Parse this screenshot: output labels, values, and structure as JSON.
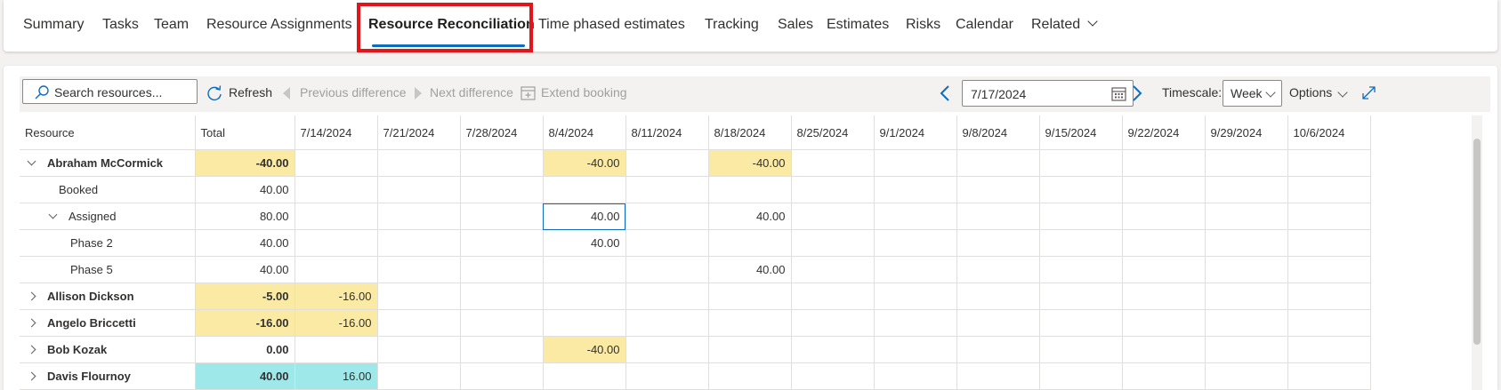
{
  "tabs": [
    {
      "label": "Summary"
    },
    {
      "label": "Tasks"
    },
    {
      "label": "Team"
    },
    {
      "label": "Resource Assignments"
    },
    {
      "label": "Resource Reconciliation"
    },
    {
      "label": "Time phased estimates"
    },
    {
      "label": "Tracking"
    },
    {
      "label": "Sales"
    },
    {
      "label": "Estimates"
    },
    {
      "label": "Risks"
    },
    {
      "label": "Calendar"
    },
    {
      "label": "Related"
    }
  ],
  "toolbar": {
    "search_placeholder": "Search resources...",
    "refresh": "Refresh",
    "previous_difference": "Previous difference",
    "next_difference": "Next difference",
    "extend_booking": "Extend booking",
    "date": "7/17/2024",
    "timescale_label": "Timescale:",
    "timescale_value": "Week",
    "options": "Options"
  },
  "grid": {
    "columns": [
      "Resource",
      "Total",
      "7/14/2024",
      "7/21/2024",
      "7/28/2024",
      "8/4/2024",
      "8/11/2024",
      "8/18/2024",
      "8/25/2024",
      "9/1/2024",
      "9/8/2024",
      "9/15/2024",
      "9/22/2024",
      "9/29/2024",
      "10/6/2024"
    ],
    "rows": [
      {
        "name": "Abraham McCormick",
        "total": "-40.00",
        "cells": [
          "",
          "",
          "",
          "-40.00",
          "",
          "-40.00",
          "",
          "",
          "",
          "",
          "",
          "",
          ""
        ]
      },
      {
        "name": "Booked",
        "total": "40.00",
        "cells": [
          "",
          "",
          "",
          "",
          "",
          "",
          "",
          "",
          "",
          "",
          "",
          "",
          ""
        ]
      },
      {
        "name": "Assigned",
        "total": "80.00",
        "cells": [
          "",
          "",
          "",
          "40.00",
          "",
          "40.00",
          "",
          "",
          "",
          "",
          "",
          "",
          ""
        ]
      },
      {
        "name": "Phase 2",
        "total": "40.00",
        "cells": [
          "",
          "",
          "",
          "40.00",
          "",
          "",
          "",
          "",
          "",
          "",
          "",
          "",
          ""
        ]
      },
      {
        "name": "Phase 5",
        "total": "40.00",
        "cells": [
          "",
          "",
          "",
          "",
          "",
          "40.00",
          "",
          "",
          "",
          "",
          "",
          "",
          ""
        ]
      },
      {
        "name": "Allison Dickson",
        "total": "-5.00",
        "cells": [
          "-16.00",
          "",
          "",
          "",
          "",
          "",
          "",
          "",
          "",
          "",
          "",
          "",
          ""
        ]
      },
      {
        "name": "Angelo Briccetti",
        "total": "-16.00",
        "cells": [
          "-16.00",
          "",
          "",
          "",
          "",
          "",
          "",
          "",
          "",
          "",
          "",
          "",
          ""
        ]
      },
      {
        "name": "Bob Kozak",
        "total": "0.00",
        "cells": [
          "",
          "",
          "",
          "-40.00",
          "",
          "",
          "",
          "",
          "",
          "",
          "",
          "",
          ""
        ]
      },
      {
        "name": "Davis Flournoy",
        "total": "40.00",
        "cells": [
          "16.00",
          "",
          "",
          "",
          "",
          "",
          "",
          "",
          "",
          "",
          "",
          "",
          ""
        ]
      }
    ]
  },
  "colors": {
    "accent": "#0f6cbd",
    "shortage": "#fbeaa4",
    "excess": "#9ee8ea",
    "callout": "#e4141b"
  }
}
